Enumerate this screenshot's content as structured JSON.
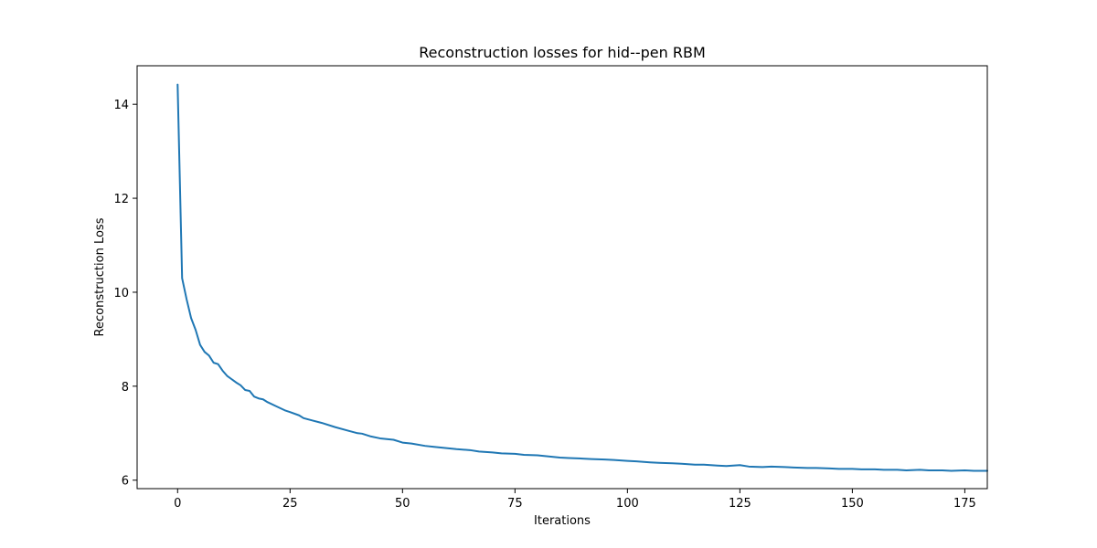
{
  "chart_data": {
    "type": "line",
    "title": "Reconstruction losses for hid--pen RBM",
    "xlabel": "Iterations",
    "ylabel": "Reconstruction Loss",
    "xlim": [
      -9,
      180
    ],
    "ylim": [
      5.82,
      14.82
    ],
    "xticks": [
      0,
      25,
      50,
      75,
      100,
      125,
      150,
      175
    ],
    "yticks": [
      6,
      8,
      10,
      12,
      14
    ],
    "grid": false,
    "line_color": "#1f77b4",
    "series": [
      {
        "x": [
          0,
          1,
          2,
          3,
          4,
          5,
          6,
          7,
          8,
          9,
          10,
          11,
          12,
          13,
          14,
          15,
          16,
          17,
          18,
          19,
          20,
          22,
          24,
          25,
          27,
          28,
          30,
          32,
          35,
          38,
          40,
          41,
          43,
          45,
          47,
          48,
          50,
          52,
          55,
          57,
          60,
          62,
          65,
          67,
          70,
          72,
          75,
          77,
          80,
          82,
          85,
          87,
          90,
          92,
          95,
          97,
          100,
          102,
          105,
          107,
          110,
          112,
          115,
          117,
          120,
          122,
          125,
          127,
          130,
          132,
          135,
          137,
          140,
          142,
          145,
          147,
          150,
          152,
          155,
          157,
          160,
          162,
          165,
          167,
          170,
          172,
          175,
          177,
          180
        ],
        "y": [
          14.42,
          10.3,
          9.85,
          9.45,
          9.2,
          8.88,
          8.73,
          8.65,
          8.5,
          8.47,
          8.33,
          8.22,
          8.15,
          8.08,
          8.02,
          7.92,
          7.9,
          7.78,
          7.74,
          7.72,
          7.66,
          7.57,
          7.48,
          7.45,
          7.38,
          7.32,
          7.27,
          7.22,
          7.13,
          7.05,
          7.0,
          6.99,
          6.93,
          6.89,
          6.87,
          6.86,
          6.8,
          6.78,
          6.73,
          6.71,
          6.68,
          6.66,
          6.64,
          6.61,
          6.59,
          6.57,
          6.56,
          6.54,
          6.53,
          6.51,
          6.48,
          6.47,
          6.46,
          6.45,
          6.44,
          6.43,
          6.41,
          6.4,
          6.38,
          6.37,
          6.36,
          6.35,
          6.33,
          6.33,
          6.31,
          6.3,
          6.32,
          6.29,
          6.28,
          6.29,
          6.28,
          6.27,
          6.26,
          6.26,
          6.25,
          6.24,
          6.24,
          6.23,
          6.23,
          6.22,
          6.22,
          6.21,
          6.22,
          6.21,
          6.21,
          6.2,
          6.21,
          6.2,
          6.2
        ]
      }
    ]
  }
}
